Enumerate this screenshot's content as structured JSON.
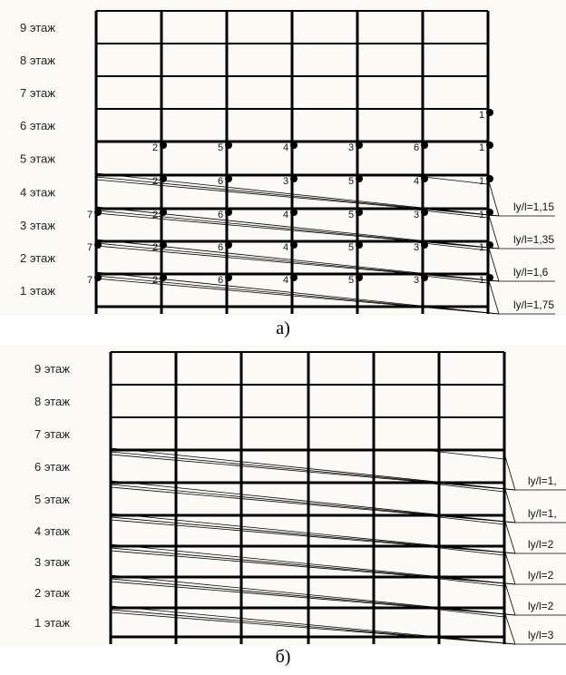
{
  "panel_a": {
    "caption": "а)",
    "floors": [
      "9 этаж",
      "8 этаж",
      "7 этаж",
      "6 этаж",
      "5 этаж",
      "4 этаж",
      "3 этаж",
      "2 этаж",
      "1 этаж"
    ],
    "ratios": [
      {
        "floor": "4 этаж",
        "label": "lу/l=1,15"
      },
      {
        "floor": "3 этаж",
        "label": "lу/l=1,35"
      },
      {
        "floor": "2 этаж",
        "label": "lу/l=1,6"
      },
      {
        "floor": "1 этаж",
        "label": "lу/l=1,75"
      }
    ],
    "node_numbers": {
      "6 этаж": [
        null,
        null,
        null,
        null,
        null,
        null,
        "1"
      ],
      "5 этаж": [
        null,
        "2",
        "5",
        "4",
        "3",
        "6",
        "1"
      ],
      "4 этаж": [
        null,
        "2",
        "6",
        "3",
        "5",
        "4",
        "1"
      ],
      "3 этаж": [
        "7",
        "2",
        "6",
        "4",
        "5",
        "3",
        "1"
      ],
      "2 этаж": [
        "7",
        "2",
        "6",
        "4",
        "5",
        "3",
        "1"
      ],
      "1 этаж": [
        "7",
        "2",
        "6",
        "4",
        "5",
        "3",
        "1"
      ]
    }
  },
  "panel_b": {
    "caption": "б)",
    "floors": [
      "9 этаж",
      "8 этаж",
      "7 этаж",
      "6 этаж",
      "5 этаж",
      "4 этаж",
      "3 этаж",
      "2 этаж",
      "1 этаж"
    ],
    "ratios": [
      {
        "floor": "6 этаж",
        "label": "lу/l=1,"
      },
      {
        "floor": "5 этаж",
        "label": "lу/l=1,"
      },
      {
        "floor": "4 этаж",
        "label": "lу/l=2"
      },
      {
        "floor": "3 этаж",
        "label": "lу/l=2"
      },
      {
        "floor": "2 этаж",
        "label": "lу/l=2"
      },
      {
        "floor": "1 этаж",
        "label": "lу/l=3"
      }
    ]
  }
}
